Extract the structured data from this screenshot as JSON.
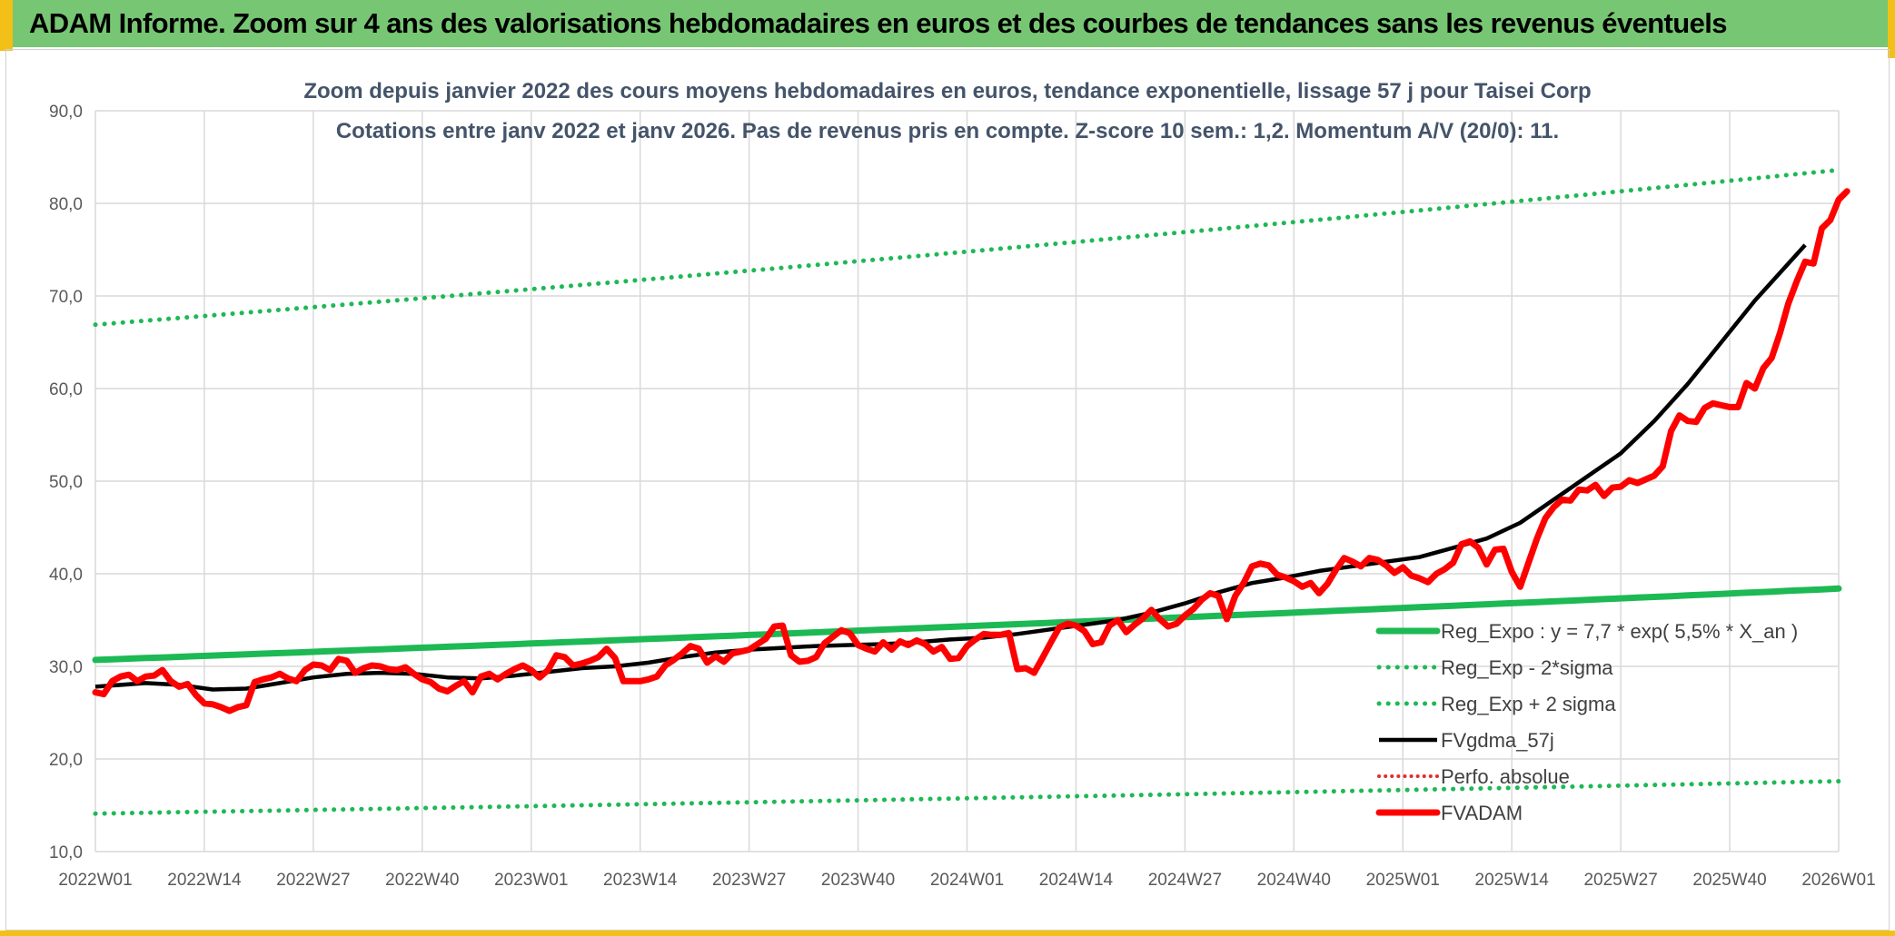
{
  "banner": {
    "title": "ADAM Informe. Zoom sur 4 ans des valorisations hebdomadaires en euros et des courbes de tendances sans les revenus éventuels"
  },
  "chart_data": {
    "type": "line",
    "title": "Zoom depuis janvier 2022 des cours moyens hebdomadaires en euros, tendance exponentielle, lissage 57 j pour Taisei Corp",
    "subtitle": "Cotations entre janv 2022 et janv 2026. Pas de revenus pris en compte. Z-score 10 sem.: 1,2. Momentum A/V (20/0): 11.",
    "xlabel": "",
    "ylabel": "",
    "ylim": [
      10,
      90
    ],
    "y_ticks": [
      "10,0",
      "20,0",
      "30,0",
      "40,0",
      "50,0",
      "60,0",
      "70,0",
      "80,0",
      "90,0"
    ],
    "x_ticks": [
      "2022W01",
      "2022W14",
      "2022W27",
      "2022W40",
      "2023W01",
      "2023W14",
      "2023W27",
      "2023W40",
      "2024W01",
      "2024W14",
      "2024W27",
      "2024W40",
      "2025W01",
      "2025W14",
      "2025W27",
      "2025W40",
      "2026W01"
    ],
    "grid": true,
    "legend_position": "bottom-right",
    "colors": {
      "green": "#1db954",
      "black": "#000000",
      "red": "#ff0000",
      "red_dotted": "#e03030"
    },
    "series": [
      {
        "name": "Reg_Expo : y = 7,7 * exp( 5,5% *  X_an )",
        "style": "solid-green",
        "endpoints": [
          [
            0,
            30.7
          ],
          [
            208,
            38.4
          ]
        ]
      },
      {
        "name": "Reg_Exp - 2*sigma",
        "style": "dotted-green",
        "endpoints": [
          [
            0,
            14.1
          ],
          [
            208,
            17.6
          ]
        ]
      },
      {
        "name": "Reg_Exp + 2 sigma",
        "style": "dotted-green",
        "endpoints": [
          [
            0,
            66.9
          ],
          [
            208,
            83.6
          ]
        ]
      },
      {
        "name": "FVgdma_57j",
        "style": "solid-black",
        "points": [
          [
            0,
            27.8
          ],
          [
            6,
            28.2
          ],
          [
            10,
            28.0
          ],
          [
            14,
            27.5
          ],
          [
            18,
            27.6
          ],
          [
            22,
            28.2
          ],
          [
            26,
            28.8
          ],
          [
            30,
            29.2
          ],
          [
            34,
            29.3
          ],
          [
            38,
            29.2
          ],
          [
            42,
            28.8
          ],
          [
            46,
            28.7
          ],
          [
            50,
            29.0
          ],
          [
            54,
            29.4
          ],
          [
            58,
            29.8
          ],
          [
            62,
            30.0
          ],
          [
            66,
            30.4
          ],
          [
            70,
            31.0
          ],
          [
            74,
            31.5
          ],
          [
            78,
            31.8
          ],
          [
            82,
            32.0
          ],
          [
            86,
            32.2
          ],
          [
            90,
            32.3
          ],
          [
            94,
            32.4
          ],
          [
            98,
            32.6
          ],
          [
            102,
            32.9
          ],
          [
            106,
            33.1
          ],
          [
            110,
            33.5
          ],
          [
            114,
            34.0
          ],
          [
            118,
            34.5
          ],
          [
            122,
            35.0
          ],
          [
            126,
            35.8
          ],
          [
            130,
            36.8
          ],
          [
            134,
            38.0
          ],
          [
            138,
            39.0
          ],
          [
            142,
            39.6
          ],
          [
            146,
            40.3
          ],
          [
            150,
            40.8
          ],
          [
            154,
            41.3
          ],
          [
            158,
            41.8
          ],
          [
            162,
            42.8
          ],
          [
            166,
            43.8
          ],
          [
            170,
            45.5
          ],
          [
            174,
            48.0
          ],
          [
            178,
            50.5
          ],
          [
            182,
            53.0
          ],
          [
            186,
            56.5
          ],
          [
            190,
            60.5
          ],
          [
            194,
            65.0
          ],
          [
            198,
            69.5
          ],
          [
            204,
            75.5
          ]
        ]
      },
      {
        "name": "Perfo. absolue",
        "style": "dotted-red",
        "points": []
      },
      {
        "name": "FVADAM",
        "style": "solid-red",
        "points": [
          [
            0,
            27.2
          ],
          [
            1,
            27.0
          ],
          [
            2,
            28.4
          ],
          [
            3,
            28.9
          ],
          [
            4,
            29.1
          ],
          [
            5,
            28.4
          ],
          [
            6,
            28.9
          ],
          [
            7,
            29.0
          ],
          [
            8,
            29.6
          ],
          [
            9,
            28.4
          ],
          [
            10,
            27.8
          ],
          [
            11,
            28.1
          ],
          [
            12,
            26.9
          ],
          [
            13,
            26.0
          ],
          [
            14,
            25.9
          ],
          [
            15,
            25.6
          ],
          [
            16,
            25.2
          ],
          [
            17,
            25.6
          ],
          [
            18,
            25.8
          ],
          [
            19,
            28.3
          ],
          [
            20,
            28.6
          ],
          [
            21,
            28.8
          ],
          [
            22,
            29.2
          ],
          [
            23,
            28.7
          ],
          [
            24,
            28.4
          ],
          [
            25,
            29.6
          ],
          [
            26,
            30.2
          ],
          [
            27,
            30.1
          ],
          [
            28,
            29.6
          ],
          [
            29,
            30.8
          ],
          [
            30,
            30.6
          ],
          [
            31,
            29.3
          ],
          [
            32,
            29.8
          ],
          [
            33,
            30.1
          ],
          [
            34,
            30.0
          ],
          [
            35,
            29.7
          ],
          [
            36,
            29.6
          ],
          [
            37,
            29.9
          ],
          [
            38,
            29.2
          ],
          [
            39,
            28.6
          ],
          [
            40,
            28.3
          ],
          [
            41,
            27.6
          ],
          [
            42,
            27.3
          ],
          [
            43,
            27.9
          ],
          [
            44,
            28.4
          ],
          [
            45,
            27.2
          ],
          [
            46,
            28.9
          ],
          [
            47,
            29.2
          ],
          [
            48,
            28.6
          ],
          [
            49,
            29.2
          ],
          [
            50,
            29.7
          ],
          [
            51,
            30.1
          ],
          [
            52,
            29.6
          ],
          [
            53,
            28.8
          ],
          [
            54,
            29.6
          ],
          [
            55,
            31.2
          ],
          [
            56,
            31.0
          ],
          [
            57,
            30.1
          ],
          [
            58,
            30.3
          ],
          [
            59,
            30.6
          ],
          [
            60,
            31.0
          ],
          [
            61,
            31.9
          ],
          [
            62,
            30.9
          ],
          [
            63,
            28.4
          ],
          [
            64,
            28.4
          ],
          [
            65,
            28.4
          ],
          [
            66,
            28.6
          ],
          [
            67,
            28.9
          ],
          [
            68,
            30.1
          ],
          [
            69,
            30.7
          ],
          [
            70,
            31.4
          ],
          [
            71,
            32.2
          ],
          [
            72,
            31.9
          ],
          [
            73,
            30.4
          ],
          [
            74,
            31.1
          ],
          [
            75,
            30.5
          ],
          [
            76,
            31.4
          ],
          [
            77,
            31.6
          ],
          [
            78,
            31.8
          ],
          [
            79,
            32.4
          ],
          [
            80,
            33.0
          ],
          [
            81,
            34.3
          ],
          [
            82,
            34.4
          ],
          [
            83,
            31.2
          ],
          [
            84,
            30.5
          ],
          [
            85,
            30.6
          ],
          [
            86,
            31.0
          ],
          [
            87,
            32.5
          ],
          [
            88,
            33.2
          ],
          [
            89,
            33.9
          ],
          [
            90,
            33.6
          ],
          [
            91,
            32.3
          ],
          [
            92,
            31.9
          ],
          [
            93,
            31.6
          ],
          [
            94,
            32.6
          ],
          [
            95,
            31.8
          ],
          [
            96,
            32.7
          ],
          [
            97,
            32.3
          ],
          [
            98,
            32.8
          ],
          [
            99,
            32.4
          ],
          [
            100,
            31.6
          ],
          [
            101,
            32.1
          ],
          [
            102,
            30.8
          ],
          [
            103,
            30.9
          ],
          [
            104,
            32.2
          ],
          [
            105,
            32.9
          ],
          [
            106,
            33.5
          ],
          [
            107,
            33.4
          ],
          [
            108,
            33.4
          ],
          [
            109,
            33.6
          ],
          [
            110,
            29.7
          ],
          [
            111,
            29.8
          ],
          [
            112,
            29.3
          ],
          [
            113,
            30.9
          ],
          [
            114,
            32.6
          ],
          [
            115,
            34.2
          ],
          [
            116,
            34.6
          ],
          [
            117,
            34.4
          ],
          [
            118,
            33.8
          ],
          [
            119,
            32.4
          ],
          [
            120,
            32.6
          ],
          [
            121,
            34.4
          ],
          [
            122,
            35.0
          ],
          [
            123,
            33.7
          ],
          [
            124,
            34.5
          ],
          [
            125,
            35.2
          ],
          [
            126,
            36.1
          ],
          [
            127,
            35.1
          ],
          [
            128,
            34.3
          ],
          [
            129,
            34.6
          ],
          [
            130,
            35.5
          ],
          [
            131,
            36.2
          ],
          [
            132,
            37.2
          ],
          [
            133,
            37.9
          ],
          [
            134,
            37.6
          ],
          [
            135,
            35.1
          ],
          [
            136,
            37.6
          ],
          [
            137,
            39.0
          ],
          [
            138,
            40.8
          ],
          [
            139,
            41.1
          ],
          [
            140,
            40.9
          ],
          [
            141,
            39.9
          ],
          [
            142,
            39.6
          ],
          [
            143,
            39.2
          ],
          [
            144,
            38.6
          ],
          [
            145,
            39.0
          ],
          [
            146,
            37.9
          ],
          [
            147,
            38.9
          ],
          [
            148,
            40.4
          ],
          [
            149,
            41.7
          ],
          [
            150,
            41.3
          ],
          [
            151,
            40.8
          ],
          [
            152,
            41.7
          ],
          [
            153,
            41.5
          ],
          [
            154,
            40.9
          ],
          [
            155,
            40.1
          ],
          [
            156,
            40.7
          ],
          [
            157,
            39.8
          ],
          [
            158,
            39.5
          ],
          [
            159,
            39.1
          ],
          [
            160,
            40.0
          ],
          [
            161,
            40.5
          ],
          [
            162,
            41.2
          ],
          [
            163,
            43.2
          ],
          [
            164,
            43.5
          ],
          [
            165,
            42.8
          ],
          [
            166,
            41.0
          ],
          [
            167,
            42.6
          ],
          [
            168,
            42.7
          ],
          [
            169,
            40.2
          ],
          [
            170,
            38.6
          ],
          [
            171,
            41.2
          ],
          [
            172,
            43.8
          ],
          [
            173,
            46.0
          ],
          [
            174,
            47.2
          ],
          [
            175,
            48.0
          ],
          [
            176,
            47.9
          ],
          [
            177,
            49.1
          ],
          [
            178,
            49.0
          ],
          [
            179,
            49.6
          ],
          [
            180,
            48.4
          ],
          [
            181,
            49.3
          ],
          [
            182,
            49.4
          ],
          [
            183,
            50.1
          ],
          [
            184,
            49.8
          ],
          [
            185,
            50.2
          ],
          [
            186,
            50.6
          ],
          [
            187,
            51.6
          ],
          [
            188,
            55.4
          ],
          [
            189,
            57.1
          ],
          [
            190,
            56.5
          ],
          [
            191,
            56.4
          ],
          [
            192,
            57.9
          ],
          [
            193,
            58.4
          ],
          [
            194,
            58.2
          ],
          [
            195,
            58.0
          ],
          [
            196,
            58.0
          ],
          [
            197,
            60.6
          ],
          [
            198,
            60.0
          ],
          [
            199,
            62.2
          ],
          [
            200,
            63.3
          ],
          [
            201,
            66.0
          ],
          [
            202,
            69.2
          ],
          [
            203,
            71.6
          ],
          [
            204,
            73.7
          ],
          [
            205,
            73.5
          ],
          [
            206,
            77.3
          ],
          [
            207,
            78.2
          ],
          [
            208,
            80.4
          ],
          [
            209,
            81.3
          ]
        ]
      }
    ]
  }
}
